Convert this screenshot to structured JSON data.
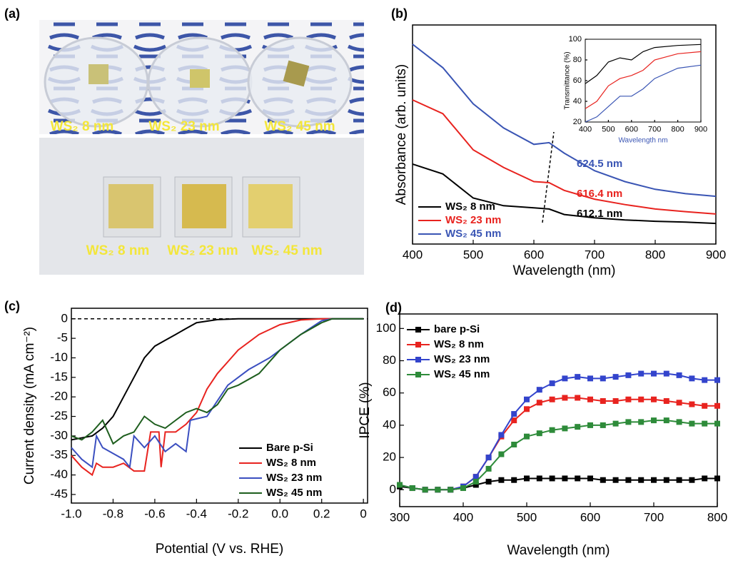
{
  "photo": {
    "panel_label": "(a)",
    "labels": [
      "WS₂ 8 nm",
      "WS₂ 23 nm",
      "WS₂ 45 nm",
      "WS₂ 8 nm",
      "WS₂ 23 nm",
      "WS₂ 45 nm"
    ]
  },
  "chart_data": [
    {
      "type": "line",
      "panel_label": "(b)",
      "x_label": "Wavelength (nm)",
      "y_label": "Absorbance (arb. units)",
      "x": [
        400,
        450,
        500,
        550,
        600,
        625,
        650,
        700,
        750,
        800,
        850,
        900
      ],
      "xlim": [
        400,
        900
      ],
      "xticks": [
        400,
        500,
        600,
        700,
        800,
        900
      ],
      "ylim": [
        0,
        1
      ],
      "legend": "lower left",
      "series": [
        {
          "name": "WS₂ 8 nm",
          "color": "#000000",
          "values": [
            0.365,
            0.32,
            0.21,
            0.175,
            0.165,
            0.16,
            0.135,
            0.12,
            0.11,
            0.104,
            0.1,
            0.094
          ]
        },
        {
          "name": "WS₂ 23 nm",
          "color": "#e8231f",
          "values": [
            0.658,
            0.595,
            0.43,
            0.35,
            0.285,
            0.28,
            0.245,
            0.205,
            0.18,
            0.16,
            0.148,
            0.137
          ]
        },
        {
          "name": "WS₂ 45 nm",
          "color": "#3a55b4",
          "values": [
            0.912,
            0.805,
            0.64,
            0.53,
            0.455,
            0.463,
            0.415,
            0.335,
            0.285,
            0.25,
            0.23,
            0.218
          ]
        }
      ],
      "annotations": [
        "624.5 nm",
        "616.4 nm",
        "612.1 nm"
      ]
    },
    {
      "type": "line",
      "x_label": "Wavelength nm",
      "x_label_color": "#3a55b4",
      "y_label": "Transmittance (%)",
      "x": [
        400,
        450,
        500,
        550,
        600,
        650,
        700,
        800,
        900
      ],
      "xlim": [
        400,
        900
      ],
      "xticks": [
        400,
        500,
        600,
        700,
        800,
        900
      ],
      "ylim": [
        20,
        100
      ],
      "yticks": [
        20,
        40,
        60,
        80,
        100
      ],
      "series": [
        {
          "color": "#000000",
          "values": [
            57,
            65,
            78,
            82,
            80,
            88,
            92,
            94,
            95
          ]
        },
        {
          "color": "#e8231f",
          "values": [
            33,
            40,
            55,
            62,
            65,
            70,
            80,
            86,
            88
          ]
        },
        {
          "color": "#3a55b4",
          "values": [
            20,
            25,
            35,
            45,
            45,
            52,
            62,
            72,
            75
          ]
        }
      ]
    },
    {
      "type": "line",
      "panel_label": "(c)",
      "x_label": "Potential (V vs. RHE)",
      "y_label": "Current density (mA cm⁻²)",
      "xlim": [
        -1.0,
        0.42
      ],
      "xticks": [
        {
          "value": -1,
          "label": "-1.0"
        },
        -0.8,
        -0.6,
        -0.4,
        -0.2,
        {
          "value": 0,
          "label": "0.0"
        },
        0.2,
        {
          "value": 0.4,
          "label": "0"
        }
      ],
      "ylim": [
        -47.2,
        2.7
      ],
      "yticks": [
        0,
        -5,
        -10,
        -15,
        -20,
        -25,
        -30,
        -35,
        -40,
        -45
      ],
      "reference_line": 0,
      "legend": "lower right",
      "series": [
        {
          "name": "Bare p-Si",
          "color": "#000000",
          "x": [
            -1.0,
            -0.9,
            -0.85,
            -0.8,
            -0.75,
            -0.7,
            -0.65,
            -0.6,
            -0.55,
            -0.5,
            -0.45,
            -0.4,
            -0.3,
            -0.2,
            0,
            0.4
          ],
          "values": [
            -31,
            -30,
            -28,
            -25,
            -20,
            -15,
            -10,
            -7,
            -5.5,
            -4,
            -2.5,
            -1,
            -0.2,
            0,
            0,
            0
          ]
        },
        {
          "name": "WS₂ 8 nm",
          "color": "#e8231f",
          "x": [
            -1.0,
            -0.95,
            -0.9,
            -0.88,
            -0.85,
            -0.8,
            -0.75,
            -0.7,
            -0.65,
            -0.62,
            -0.58,
            -0.57,
            -0.55,
            -0.5,
            -0.45,
            -0.4,
            -0.35,
            -0.3,
            -0.25,
            -0.2,
            -0.1,
            0,
            0.1,
            0.2,
            0.4
          ],
          "values": [
            -35,
            -38,
            -40,
            -37,
            -38,
            -38,
            -37,
            -39,
            -39,
            -29,
            -29,
            -38,
            -29,
            -29,
            -27,
            -24,
            -18,
            -14,
            -11,
            -8,
            -4,
            -1.5,
            -0.3,
            0,
            0
          ]
        },
        {
          "name": "WS₂ 23 nm",
          "color": "#3b4fc0",
          "x": [
            -1.0,
            -0.95,
            -0.9,
            -0.88,
            -0.85,
            -0.75,
            -0.72,
            -0.7,
            -0.65,
            -0.6,
            -0.55,
            -0.5,
            -0.45,
            -0.43,
            -0.35,
            -0.3,
            -0.25,
            -0.15,
            -0.05,
            0,
            0.1,
            0.2,
            0.25,
            0.4
          ],
          "values": [
            -33,
            -36,
            -38,
            -30,
            -33,
            -36,
            -38,
            -30,
            -33,
            -30,
            -34,
            -32,
            -34,
            -26,
            -25,
            -21,
            -17,
            -13,
            -10,
            -8,
            -4,
            -0.5,
            0,
            0
          ]
        },
        {
          "name": "WS₂ 45 nm",
          "color": "#1e5e1e",
          "x": [
            -1.0,
            -0.95,
            -0.9,
            -0.85,
            -0.8,
            -0.75,
            -0.7,
            -0.65,
            -0.6,
            -0.55,
            -0.5,
            -0.45,
            -0.4,
            -0.35,
            -0.3,
            -0.25,
            -0.2,
            -0.1,
            0,
            0.1,
            0.2,
            0.25,
            0.4
          ],
          "values": [
            -30,
            -31,
            -29,
            -26,
            -32,
            -30,
            -29,
            -25,
            -27,
            -28,
            -26,
            -24,
            -23,
            -24,
            -22,
            -18,
            -17,
            -14,
            -8,
            -4,
            -1,
            0,
            0
          ]
        }
      ]
    },
    {
      "type": "line",
      "panel_label": "(d)",
      "x_label": "Wavelength (nm)",
      "y_label": "IPCE (%)",
      "marker": "square",
      "x": [
        300,
        320,
        340,
        360,
        380,
        400,
        420,
        440,
        460,
        480,
        500,
        520,
        540,
        560,
        580,
        600,
        620,
        640,
        660,
        680,
        700,
        720,
        740,
        760,
        780,
        800
      ],
      "xlim": [
        300,
        800
      ],
      "xticks": [
        300,
        400,
        500,
        600,
        700,
        800
      ],
      "ylim": [
        -10.5,
        109
      ],
      "yticks": [
        0,
        20,
        40,
        60,
        80,
        100
      ],
      "legend": "upper left",
      "series": [
        {
          "name": "bare p-Si",
          "color": "#000000",
          "values": [
            2,
            1,
            0,
            0,
            0,
            1,
            3,
            5,
            6,
            6,
            7,
            7,
            7,
            7,
            7,
            7,
            6,
            6,
            6,
            6,
            6,
            6,
            6,
            6,
            7,
            7
          ]
        },
        {
          "name": "WS₂ 8 nm",
          "color": "#e8231f",
          "values": [
            3,
            1,
            0,
            0,
            0,
            2,
            8,
            20,
            33,
            43,
            50,
            54,
            56,
            57,
            57,
            56,
            55,
            55,
            56,
            56,
            56,
            55,
            54,
            53,
            52,
            52
          ]
        },
        {
          "name": "WS₂ 23 nm",
          "color": "#3344cc",
          "values": [
            3,
            1,
            0,
            0,
            0,
            2,
            8,
            20,
            34,
            47,
            56,
            62,
            66,
            69,
            70,
            69,
            69,
            70,
            71,
            72,
            72,
            72,
            71,
            69,
            68,
            68
          ]
        },
        {
          "name": "WS₂ 45 nm",
          "color": "#2e8b3a",
          "values": [
            3,
            1,
            0,
            0,
            0,
            1,
            5,
            13,
            22,
            28,
            33,
            35,
            37,
            38,
            39,
            40,
            40,
            41,
            42,
            42,
            43,
            43,
            42,
            41,
            41,
            41
          ]
        }
      ]
    }
  ]
}
